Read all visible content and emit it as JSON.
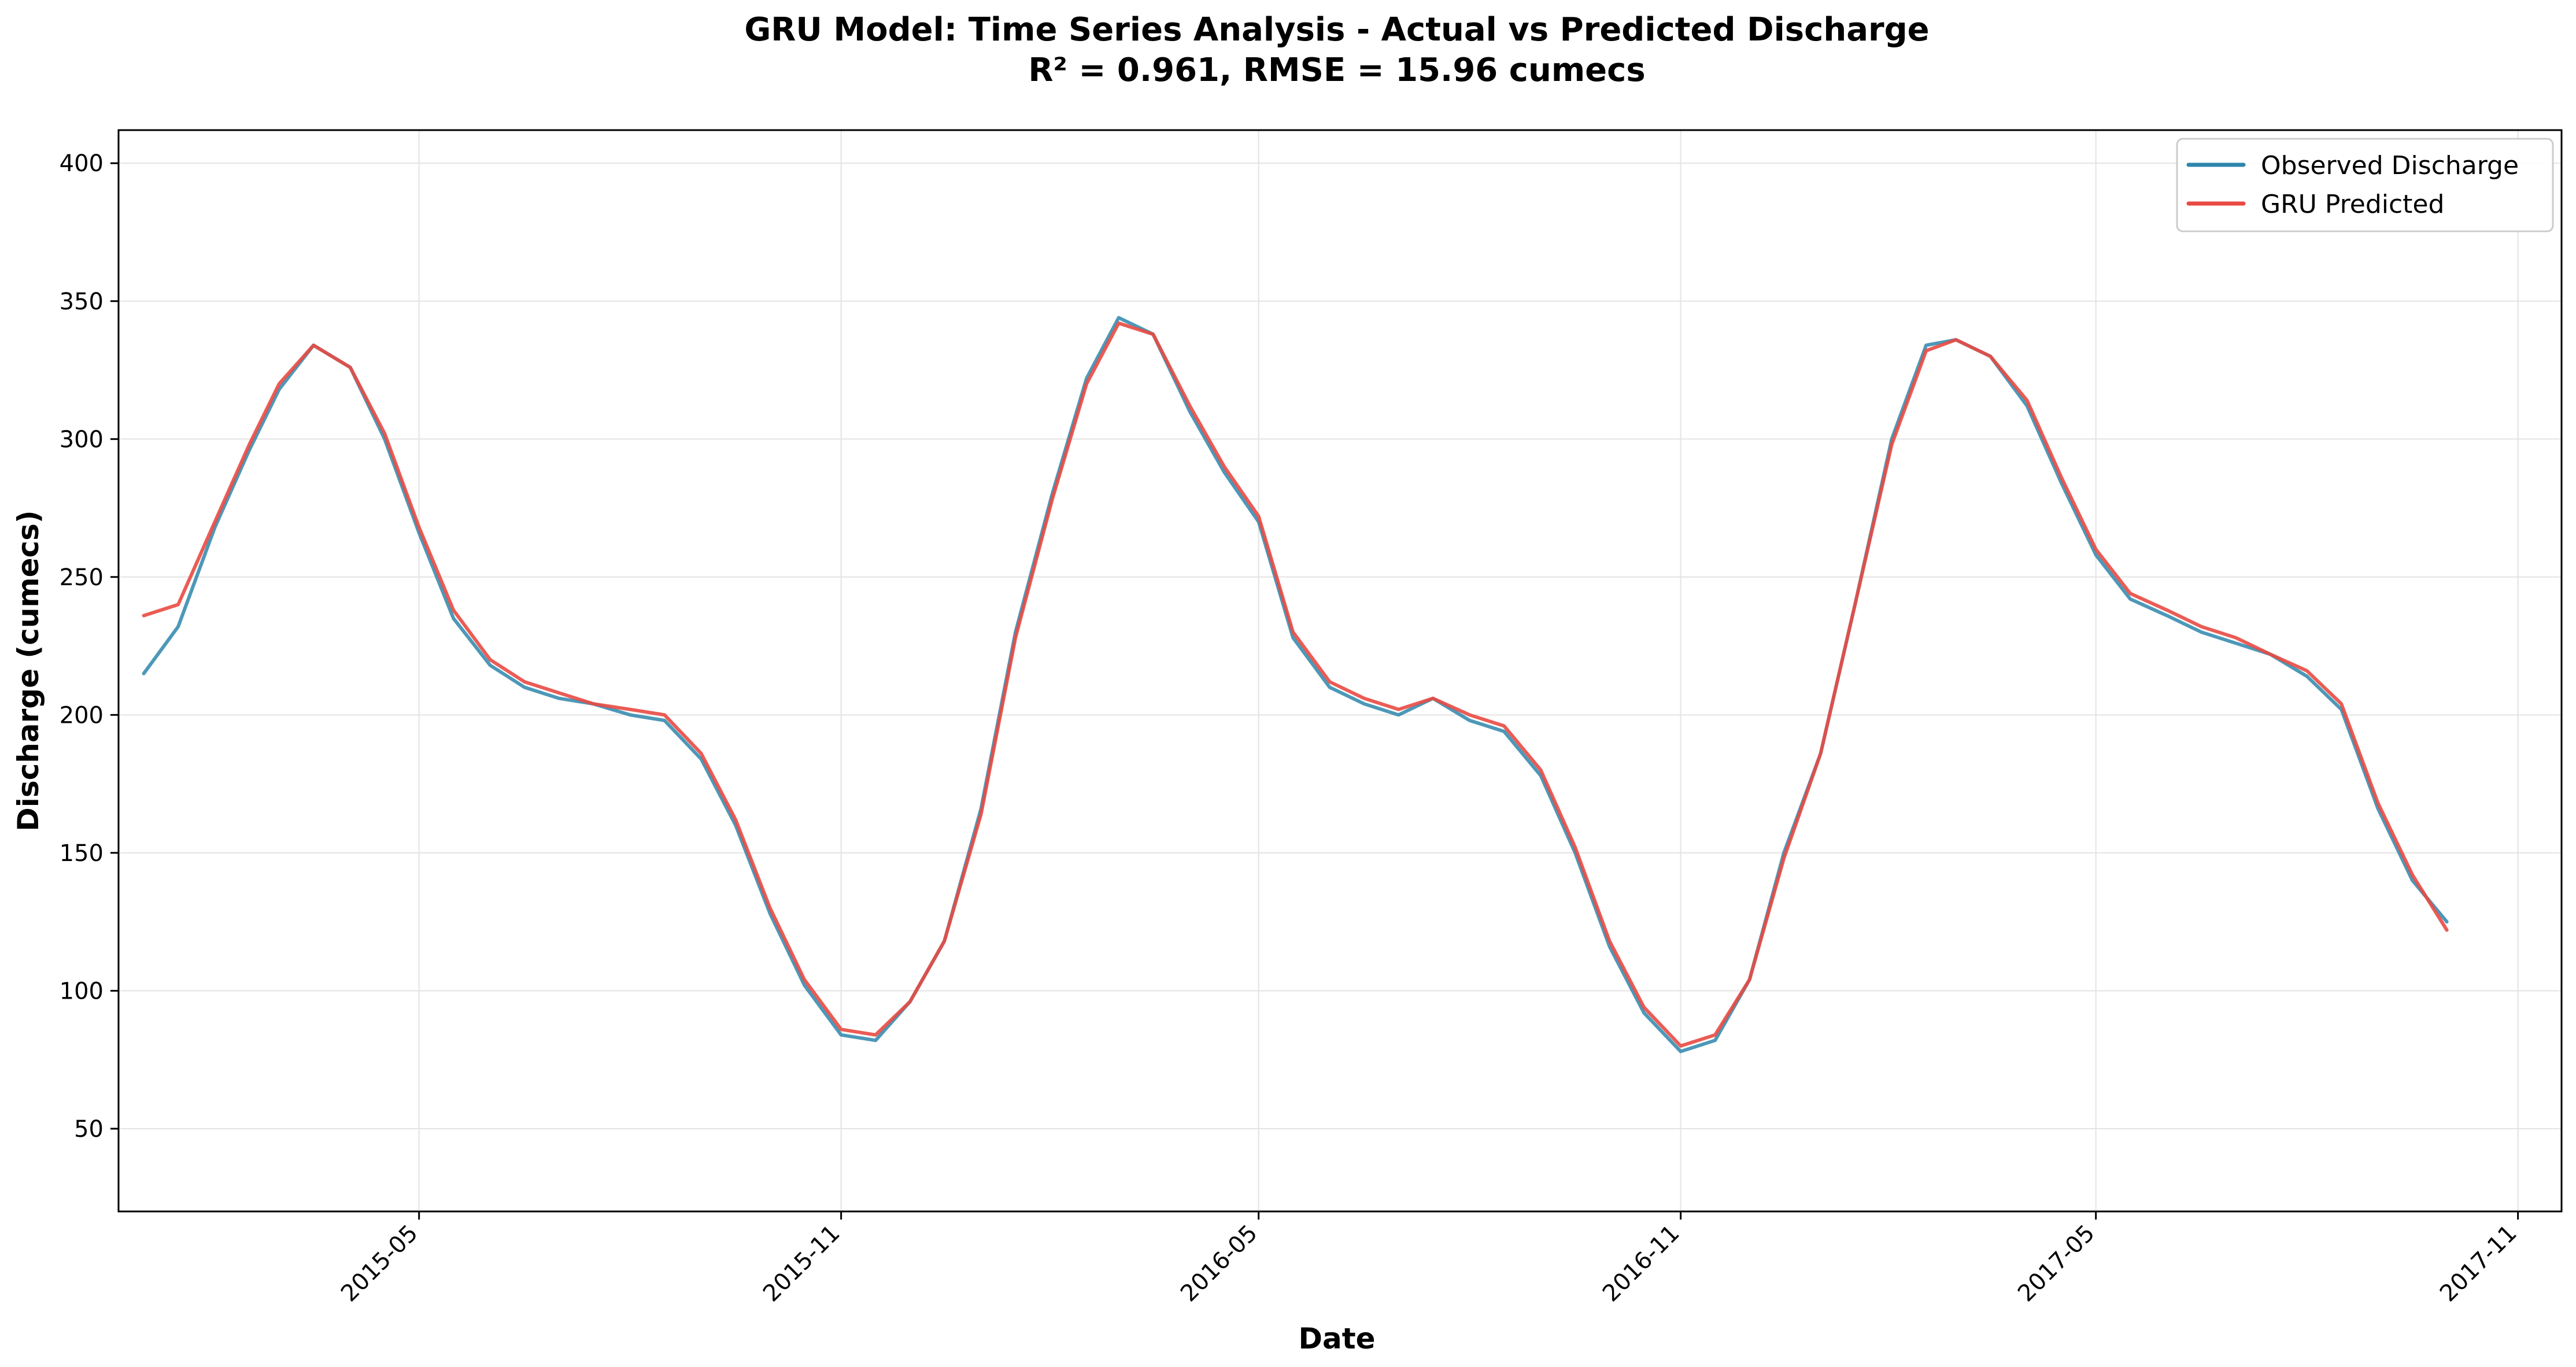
{
  "chart_data": {
    "type": "line",
    "title": "GRU Model: Time Series Analysis - Actual vs Predicted Discharge",
    "subtitle": "R² = 0.961, RMSE = 15.96 cumecs",
    "xlabel": "Date",
    "ylabel": "Discharge (cumecs)",
    "x_range": [
      "2014-12-21",
      "2017-11-20"
    ],
    "ylim": [
      20,
      412
    ],
    "x_ticks": [
      "2015-05",
      "2015-11",
      "2016-05",
      "2016-11",
      "2017-05",
      "2017-11"
    ],
    "y_ticks": [
      50,
      100,
      150,
      200,
      250,
      300,
      350,
      400
    ],
    "y_tick_labels": [
      "50",
      "100",
      "150",
      "200",
      "250",
      "300",
      "350",
      "400"
    ],
    "grid": true,
    "legend_position": "top-right",
    "colors": {
      "observed": "#2e86ab",
      "predicted": "#e84a43"
    },
    "series": [
      {
        "name": "Observed Discharge",
        "points": [
          [
            "2015-01-01",
            215
          ],
          [
            "2015-01-16",
            232
          ],
          [
            "2015-02-01",
            268
          ],
          [
            "2015-02-16",
            296
          ],
          [
            "2015-03-01",
            318
          ],
          [
            "2015-03-16",
            334
          ],
          [
            "2015-04-01",
            326
          ],
          [
            "2015-04-16",
            300
          ],
          [
            "2015-05-01",
            266
          ],
          [
            "2015-05-16",
            235
          ],
          [
            "2015-06-01",
            218
          ],
          [
            "2015-06-16",
            210
          ],
          [
            "2015-07-01",
            206
          ],
          [
            "2015-07-16",
            204
          ],
          [
            "2015-08-01",
            200
          ],
          [
            "2015-08-16",
            198
          ],
          [
            "2015-09-01",
            184
          ],
          [
            "2015-09-16",
            160
          ],
          [
            "2015-10-01",
            128
          ],
          [
            "2015-10-16",
            102
          ],
          [
            "2015-11-01",
            84
          ],
          [
            "2015-11-16",
            82
          ],
          [
            "2015-12-01",
            96
          ],
          [
            "2015-12-16",
            118
          ],
          [
            "2016-01-01",
            166
          ],
          [
            "2016-01-16",
            230
          ],
          [
            "2016-02-01",
            280
          ],
          [
            "2016-02-16",
            322
          ],
          [
            "2016-03-01",
            344
          ],
          [
            "2016-03-16",
            338
          ],
          [
            "2016-04-01",
            310
          ],
          [
            "2016-04-16",
            288
          ],
          [
            "2016-05-01",
            270
          ],
          [
            "2016-05-16",
            228
          ],
          [
            "2016-06-01",
            210
          ],
          [
            "2016-06-16",
            204
          ],
          [
            "2016-07-01",
            200
          ],
          [
            "2016-07-16",
            206
          ],
          [
            "2016-08-01",
            198
          ],
          [
            "2016-08-16",
            194
          ],
          [
            "2016-09-01",
            178
          ],
          [
            "2016-09-16",
            150
          ],
          [
            "2016-10-01",
            116
          ],
          [
            "2016-10-16",
            92
          ],
          [
            "2016-11-01",
            78
          ],
          [
            "2016-11-16",
            82
          ],
          [
            "2016-12-01",
            104
          ],
          [
            "2016-12-16",
            150
          ],
          [
            "2017-01-01",
            186
          ],
          [
            "2017-01-16",
            240
          ],
          [
            "2017-02-01",
            300
          ],
          [
            "2017-02-16",
            334
          ],
          [
            "2017-03-01",
            336
          ],
          [
            "2017-03-16",
            330
          ],
          [
            "2017-04-01",
            312
          ],
          [
            "2017-04-16",
            284
          ],
          [
            "2017-05-01",
            258
          ],
          [
            "2017-05-16",
            242
          ],
          [
            "2017-06-01",
            236
          ],
          [
            "2017-06-16",
            230
          ],
          [
            "2017-07-01",
            226
          ],
          [
            "2017-07-16",
            222
          ],
          [
            "2017-08-01",
            214
          ],
          [
            "2017-08-16",
            202
          ],
          [
            "2017-09-01",
            166
          ],
          [
            "2017-09-16",
            140
          ],
          [
            "2017-10-01",
            125
          ]
        ]
      },
      {
        "name": "GRU Predicted",
        "points": [
          [
            "2015-01-01",
            236
          ],
          [
            "2015-01-16",
            240
          ],
          [
            "2015-02-01",
            270
          ],
          [
            "2015-02-16",
            298
          ],
          [
            "2015-03-01",
            320
          ],
          [
            "2015-03-16",
            334
          ],
          [
            "2015-04-01",
            326
          ],
          [
            "2015-04-16",
            302
          ],
          [
            "2015-05-01",
            268
          ],
          [
            "2015-05-16",
            238
          ],
          [
            "2015-06-01",
            220
          ],
          [
            "2015-06-16",
            212
          ],
          [
            "2015-07-01",
            208
          ],
          [
            "2015-07-16",
            204
          ],
          [
            "2015-08-01",
            202
          ],
          [
            "2015-08-16",
            200
          ],
          [
            "2015-09-01",
            186
          ],
          [
            "2015-09-16",
            162
          ],
          [
            "2015-10-01",
            130
          ],
          [
            "2015-10-16",
            104
          ],
          [
            "2015-11-01",
            86
          ],
          [
            "2015-11-16",
            84
          ],
          [
            "2015-12-01",
            96
          ],
          [
            "2015-12-16",
            118
          ],
          [
            "2016-01-01",
            164
          ],
          [
            "2016-01-16",
            228
          ],
          [
            "2016-02-01",
            278
          ],
          [
            "2016-02-16",
            320
          ],
          [
            "2016-03-01",
            342
          ],
          [
            "2016-03-16",
            338
          ],
          [
            "2016-04-01",
            312
          ],
          [
            "2016-04-16",
            290
          ],
          [
            "2016-05-01",
            272
          ],
          [
            "2016-05-16",
            230
          ],
          [
            "2016-06-01",
            212
          ],
          [
            "2016-06-16",
            206
          ],
          [
            "2016-07-01",
            202
          ],
          [
            "2016-07-16",
            206
          ],
          [
            "2016-08-01",
            200
          ],
          [
            "2016-08-16",
            196
          ],
          [
            "2016-09-01",
            180
          ],
          [
            "2016-09-16",
            152
          ],
          [
            "2016-10-01",
            118
          ],
          [
            "2016-10-16",
            94
          ],
          [
            "2016-11-01",
            80
          ],
          [
            "2016-11-16",
            84
          ],
          [
            "2016-12-01",
            104
          ],
          [
            "2016-12-16",
            148
          ],
          [
            "2017-01-01",
            186
          ],
          [
            "2017-01-16",
            240
          ],
          [
            "2017-02-01",
            298
          ],
          [
            "2017-02-16",
            332
          ],
          [
            "2017-03-01",
            336
          ],
          [
            "2017-03-16",
            330
          ],
          [
            "2017-04-01",
            314
          ],
          [
            "2017-04-16",
            286
          ],
          [
            "2017-05-01",
            260
          ],
          [
            "2017-05-16",
            244
          ],
          [
            "2017-06-01",
            238
          ],
          [
            "2017-06-16",
            232
          ],
          [
            "2017-07-01",
            228
          ],
          [
            "2017-07-16",
            222
          ],
          [
            "2017-08-01",
            216
          ],
          [
            "2017-08-16",
            204
          ],
          [
            "2017-09-01",
            168
          ],
          [
            "2017-09-16",
            142
          ],
          [
            "2017-10-01",
            122
          ]
        ]
      }
    ]
  }
}
